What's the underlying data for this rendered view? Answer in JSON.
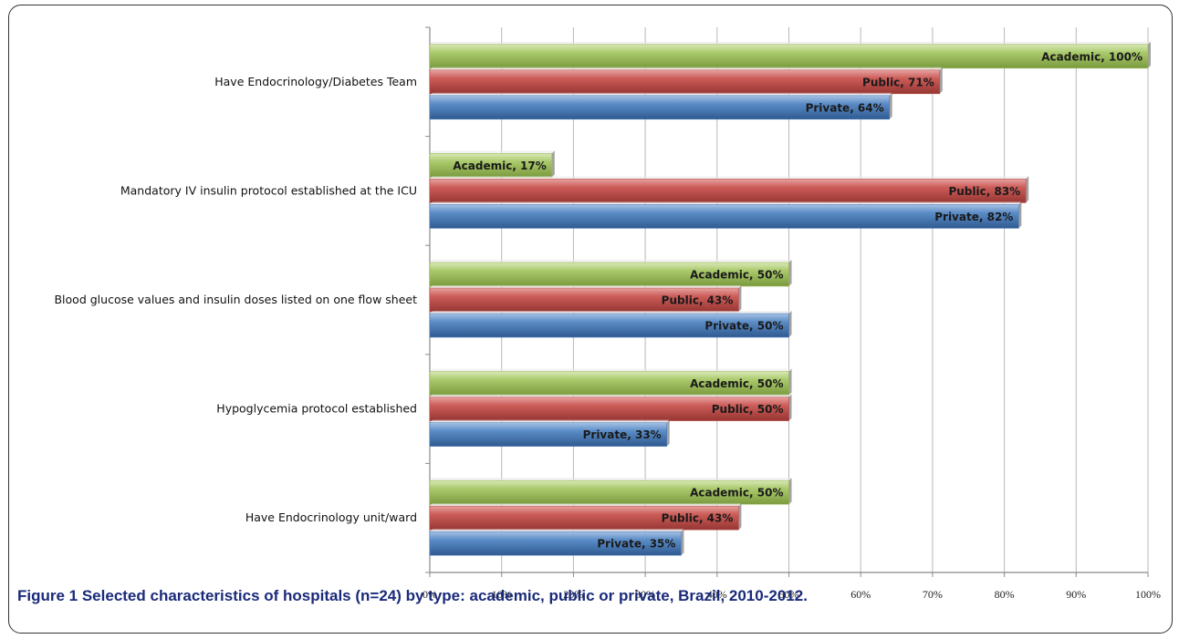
{
  "caption": "Figure 1 Selected characteristics of hospitals (n=24) by type: academic, public or private, Brazil, 2010-2012.",
  "chart_data": {
    "type": "bar",
    "orientation": "horizontal",
    "categories": [
      "Have Endocrinology/Diabetes Team",
      "Mandatory IV insulin protocol established at the ICU",
      "Blood glucose values and insulin doses listed on one  flow sheet",
      "Hypoglycemia protocol established",
      "Have Endocrinology unit/ward"
    ],
    "series": [
      {
        "name": "Academic",
        "color": "#9bbb59",
        "values": [
          100,
          17,
          50,
          50,
          50
        ]
      },
      {
        "name": "Public",
        "color": "#c0504d",
        "values": [
          71,
          83,
          43,
          50,
          43
        ]
      },
      {
        "name": "Private",
        "color": "#4f81bd",
        "values": [
          64,
          82,
          50,
          33,
          35
        ]
      }
    ],
    "xlim": [
      0,
      100
    ],
    "xticks": [
      "0%",
      "10%",
      "20%",
      "30%",
      "40%",
      "50%",
      "60%",
      "70%",
      "80%",
      "90%",
      "100%"
    ],
    "grid": true,
    "legend": "none",
    "title": "",
    "xlabel": "",
    "ylabel": ""
  }
}
